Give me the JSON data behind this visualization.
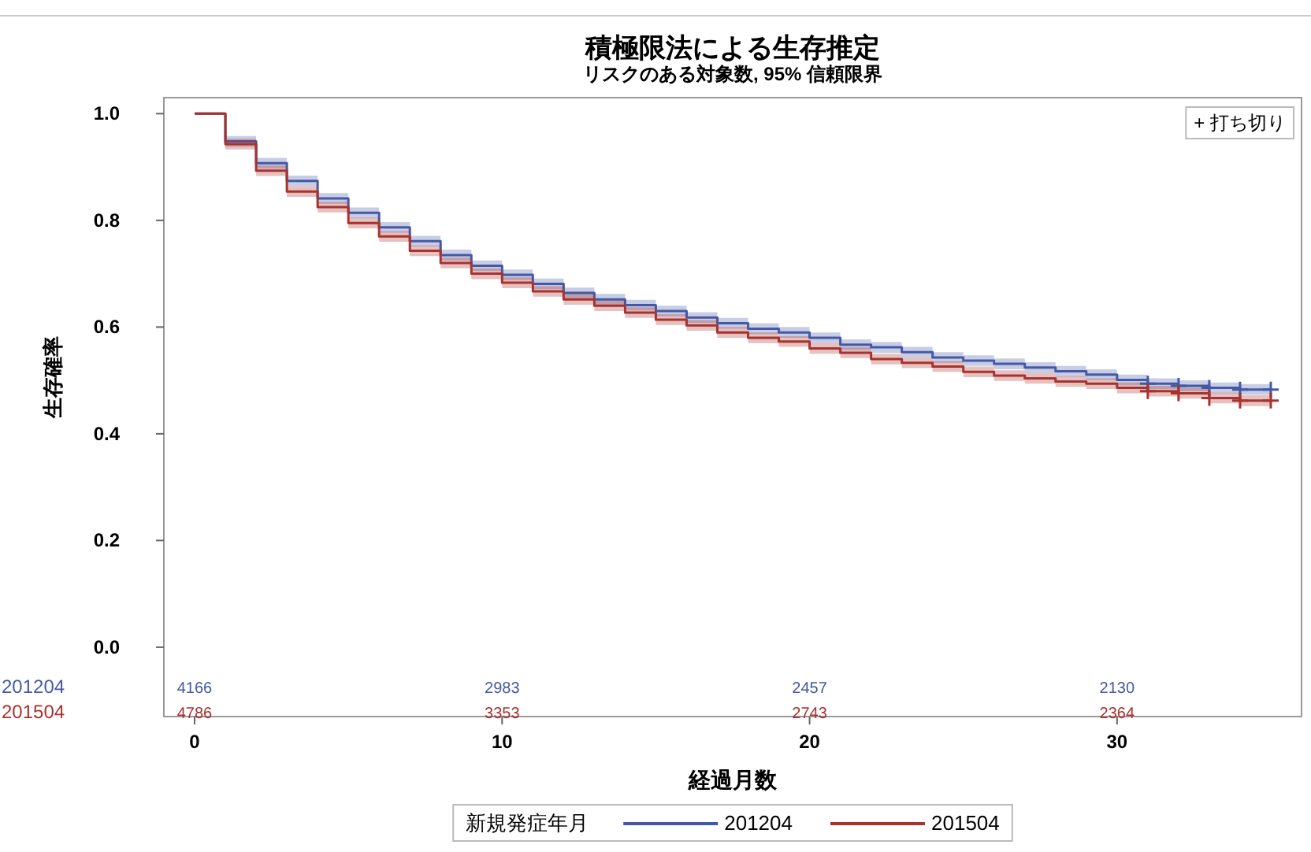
{
  "chart_data": {
    "type": "step",
    "title": "積極限法による生存推定",
    "subtitle": "リスクのある対象数, 95% 信頼限界",
    "xlabel": "経過月数",
    "ylabel": "生存確率",
    "legend_title": "新規発症年月",
    "legend": "bottom",
    "x": [
      0,
      1,
      2,
      3,
      4,
      5,
      6,
      7,
      8,
      9,
      10,
      11,
      12,
      13,
      14,
      15,
      16,
      17,
      18,
      19,
      20,
      21,
      22,
      23,
      24,
      25,
      26,
      27,
      28,
      29,
      30,
      31,
      32,
      33,
      34,
      35
    ],
    "xlim": [
      -1,
      36
    ],
    "xticks": [
      0,
      10,
      20,
      30
    ],
    "ylim": [
      -0.13,
      1.03
    ],
    "yticks": [
      {
        "value": 0,
        "label": "0.0"
      },
      {
        "value": 0.2,
        "label": "0.2"
      },
      {
        "value": 0.4,
        "label": "0.4"
      },
      {
        "value": 0.6,
        "label": "0.6"
      },
      {
        "value": 0.8,
        "label": "0.8"
      },
      {
        "value": 1,
        "label": "1.0"
      }
    ],
    "grid": false,
    "series": [
      {
        "name": "201204",
        "color": "#4459a5",
        "values": [
          1.0,
          0.948,
          0.907,
          0.874,
          0.841,
          0.814,
          0.787,
          0.761,
          0.735,
          0.715,
          0.698,
          0.681,
          0.664,
          0.652,
          0.641,
          0.63,
          0.618,
          0.607,
          0.597,
          0.59,
          0.58,
          0.567,
          0.562,
          0.553,
          0.543,
          0.537,
          0.531,
          0.524,
          0.517,
          0.511,
          0.501,
          0.494,
          0.49,
          0.486,
          0.483,
          0.483
        ],
        "lower": [
          1.0,
          0.938,
          0.897,
          0.864,
          0.831,
          0.804,
          0.777,
          0.751,
          0.725,
          0.705,
          0.688,
          0.671,
          0.654,
          0.642,
          0.631,
          0.62,
          0.608,
          0.597,
          0.587,
          0.58,
          0.57,
          0.557,
          0.552,
          0.543,
          0.533,
          0.527,
          0.521,
          0.514,
          0.507,
          0.501,
          0.491,
          0.484,
          0.48,
          0.476,
          0.473,
          0.473
        ],
        "upper": [
          1.0,
          0.958,
          0.917,
          0.884,
          0.851,
          0.824,
          0.797,
          0.771,
          0.745,
          0.725,
          0.708,
          0.691,
          0.674,
          0.662,
          0.651,
          0.64,
          0.628,
          0.617,
          0.607,
          0.6,
          0.59,
          0.577,
          0.572,
          0.563,
          0.553,
          0.547,
          0.541,
          0.534,
          0.527,
          0.521,
          0.511,
          0.504,
          0.5,
          0.496,
          0.493,
          0.493
        ]
      },
      {
        "name": "201504",
        "color": "#a8322d",
        "values": [
          1.0,
          0.943,
          0.893,
          0.854,
          0.825,
          0.795,
          0.77,
          0.743,
          0.72,
          0.7,
          0.683,
          0.667,
          0.652,
          0.64,
          0.627,
          0.614,
          0.603,
          0.59,
          0.58,
          0.573,
          0.56,
          0.552,
          0.54,
          0.533,
          0.526,
          0.516,
          0.509,
          0.504,
          0.498,
          0.494,
          0.486,
          0.48,
          0.476,
          0.467,
          0.462,
          0.462
        ],
        "lower": [
          1.0,
          0.933,
          0.883,
          0.844,
          0.815,
          0.785,
          0.76,
          0.733,
          0.71,
          0.69,
          0.673,
          0.657,
          0.642,
          0.63,
          0.617,
          0.604,
          0.593,
          0.58,
          0.57,
          0.563,
          0.55,
          0.542,
          0.53,
          0.523,
          0.516,
          0.506,
          0.499,
          0.494,
          0.488,
          0.484,
          0.476,
          0.47,
          0.466,
          0.457,
          0.452,
          0.452
        ],
        "upper": [
          1.0,
          0.953,
          0.903,
          0.864,
          0.835,
          0.805,
          0.78,
          0.753,
          0.73,
          0.71,
          0.693,
          0.677,
          0.662,
          0.65,
          0.637,
          0.624,
          0.613,
          0.6,
          0.59,
          0.583,
          0.57,
          0.562,
          0.55,
          0.543,
          0.536,
          0.526,
          0.519,
          0.514,
          0.508,
          0.504,
          0.496,
          0.49,
          0.486,
          0.477,
          0.472,
          0.472
        ]
      },
      {
        "type": "scatter",
        "marker": "cross",
        "color": "#4459a5",
        "x": [
          31,
          32,
          33,
          34,
          35
        ],
        "values": [
          0.494,
          0.49,
          0.486,
          0.483,
          0.483
        ]
      },
      {
        "type": "scatter",
        "marker": "cross",
        "color": "#a8322d",
        "x": [
          31,
          32,
          33,
          34,
          35
        ],
        "values": [
          0.48,
          0.476,
          0.467,
          0.462,
          0.462
        ]
      }
    ],
    "annotations": [
      "+ 打ち切り",
      "4166",
      "2983",
      "2457",
      "2130",
      "4786",
      "3353",
      "2743",
      "2364"
    ]
  }
}
